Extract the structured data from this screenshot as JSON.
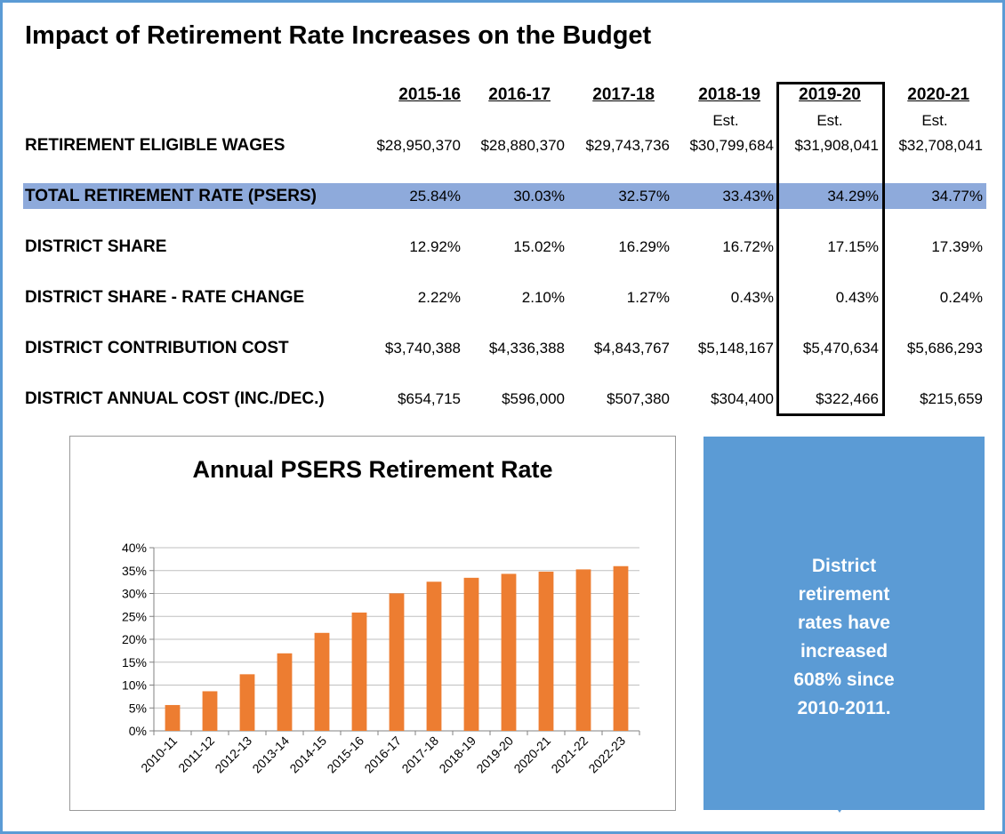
{
  "title": "Impact of Retirement Rate Increases on the Budget",
  "table": {
    "years": [
      "2015-16",
      "2016-17",
      "2017-18",
      "2018-19",
      "2019-20",
      "2020-21"
    ],
    "est_labels": [
      "",
      "",
      "",
      "Est.",
      "Est.",
      "Est."
    ],
    "rows": [
      {
        "label": "RETIREMENT ELIGIBLE WAGES",
        "values": [
          "$28,950,370",
          "$28,880,370",
          "$29,743,736",
          "$30,799,684",
          "$31,908,041",
          "$32,708,041"
        ]
      },
      {
        "label": "TOTAL RETIREMENT RATE (PSERS)",
        "values": [
          "25.84%",
          "30.03%",
          "32.57%",
          "33.43%",
          "34.29%",
          "34.77%"
        ]
      },
      {
        "label": "DISTRICT SHARE",
        "values": [
          "12.92%",
          "15.02%",
          "16.29%",
          "16.72%",
          "17.15%",
          "17.39%"
        ]
      },
      {
        "label": "DISTRICT SHARE - RATE CHANGE",
        "values": [
          "2.22%",
          "2.10%",
          "1.27%",
          "0.43%",
          "0.43%",
          "0.24%"
        ]
      },
      {
        "label": "DISTRICT CONTRIBUTION COST",
        "values": [
          "$3,740,388",
          "$4,336,388",
          "$4,843,767",
          "$5,148,167",
          "$5,470,634",
          "$5,686,293"
        ]
      },
      {
        "label": "DISTRICT ANNUAL COST (INC./DEC.)",
        "values": [
          "$654,715",
          "$596,000",
          "$507,380",
          "$304,400",
          "$322,466",
          "$215,659"
        ]
      }
    ],
    "band_color": "#8eaadb",
    "highlighted_column": "2019-20"
  },
  "callout": {
    "lines": [
      "District",
      "retirement",
      "rates have",
      "increased",
      "608% since",
      "2010-2011."
    ],
    "color": "#5b9bd5"
  },
  "chart_data": {
    "type": "bar",
    "title": "Annual PSERS Retirement Rate",
    "categories": [
      "2010-11",
      "2011-12",
      "2012-13",
      "2013-14",
      "2014-15",
      "2015-16",
      "2016-17",
      "2017-18",
      "2018-19",
      "2019-20",
      "2020-21",
      "2021-22",
      "2022-23"
    ],
    "values": [
      5.64,
      8.65,
      12.36,
      16.93,
      21.4,
      25.84,
      30.03,
      32.57,
      33.43,
      34.29,
      34.77,
      35.26,
      35.97
    ],
    "ylim": [
      0,
      40
    ],
    "yticks": [
      "0%",
      "5%",
      "10%",
      "15%",
      "20%",
      "25%",
      "30%",
      "35%",
      "40%"
    ],
    "xlabel": "",
    "ylabel": "",
    "bar_color": "#ed7d31",
    "grid": true
  }
}
